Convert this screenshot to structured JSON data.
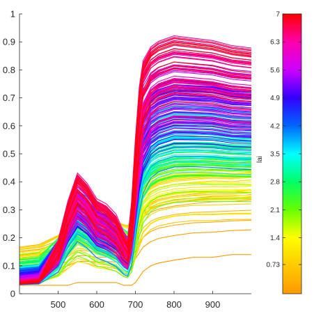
{
  "chart_data": [
    {
      "type": "line",
      "title": "",
      "xlabel": "",
      "ylabel": "",
      "xlim": [
        400,
        1000
      ],
      "ylim": [
        0,
        1
      ],
      "xticks": [
        500,
        600,
        700,
        800,
        900
      ],
      "xtick_labels": [
        "500",
        "600",
        "700",
        "800",
        "900"
      ],
      "yticks": [
        0,
        0.1,
        0.2,
        0.3,
        0.4,
        0.5,
        0.6,
        0.7,
        0.8,
        0.9,
        1
      ],
      "ytick_labels": [
        "0",
        "0.1",
        "0.2",
        "0.3",
        "0.4",
        "0.5",
        "0.6",
        "0.7",
        "0.8",
        "0.9",
        "1"
      ],
      "grid": false,
      "box": "left-bottom-axes-only",
      "series_color_by": "lai",
      "series_count_note": "hundreds of overlapping spectral reflectance curves, each colored by its lai value",
      "series_envelope": {
        "x": [
          400,
          450,
          500,
          525,
          550,
          575,
          600,
          625,
          650,
          670,
          680,
          690,
          700,
          710,
          720,
          740,
          760,
          800,
          850,
          900,
          950,
          1000
        ],
        "low_lai_min": [
          0.03,
          0.03,
          0.03,
          0.03,
          0.04,
          0.04,
          0.04,
          0.04,
          0.04,
          0.03,
          0.03,
          0.03,
          0.04,
          0.06,
          0.08,
          0.1,
          0.11,
          0.12,
          0.13,
          0.13,
          0.14,
          0.14
        ],
        "low_lai_max": [
          0.21,
          0.22,
          0.24,
          0.25,
          0.27,
          0.28,
          0.28,
          0.29,
          0.29,
          0.29,
          0.29,
          0.29,
          0.3,
          0.3,
          0.31,
          0.32,
          0.33,
          0.34,
          0.35,
          0.36,
          0.36,
          0.37
        ],
        "high_lai_min": [
          0.03,
          0.03,
          0.05,
          0.12,
          0.16,
          0.13,
          0.08,
          0.06,
          0.04,
          0.02,
          0.02,
          0.03,
          0.12,
          0.22,
          0.3,
          0.38,
          0.41,
          0.43,
          0.43,
          0.43,
          0.42,
          0.42
        ],
        "high_lai_max": [
          0.04,
          0.05,
          0.2,
          0.35,
          0.46,
          0.42,
          0.36,
          0.34,
          0.3,
          0.23,
          0.2,
          0.35,
          0.6,
          0.8,
          0.9,
          0.95,
          0.97,
          0.99,
          0.98,
          0.97,
          0.95,
          0.94
        ]
      }
    },
    {
      "type": "heatmap",
      "role": "colorbar",
      "label": "lai",
      "range": [
        0,
        7
      ],
      "ticks": [
        0.73,
        1.4,
        2.1,
        2.8,
        3.5,
        4.2,
        4.9,
        5.6,
        6.3,
        7
      ],
      "tick_labels": [
        "0.73",
        "1.4",
        "2.1",
        "2.8",
        "3.5",
        "4.2",
        "4.9",
        "5.6",
        "6.3",
        "7"
      ],
      "colormap": "hsv",
      "colormap_stops": [
        {
          "value": 0,
          "color": "#FF9900"
        },
        {
          "value": 0.73,
          "color": "#FFCC00"
        },
        {
          "value": 1.4,
          "color": "#FFFF00"
        },
        {
          "value": 2.1,
          "color": "#66FF00"
        },
        {
          "value": 2.8,
          "color": "#00FF66"
        },
        {
          "value": 3.5,
          "color": "#00FFFF"
        },
        {
          "value": 4.2,
          "color": "#0066FF"
        },
        {
          "value": 4.9,
          "color": "#3300FF"
        },
        {
          "value": 5.6,
          "color": "#CC00FF"
        },
        {
          "value": 6.3,
          "color": "#FF00AA"
        },
        {
          "value": 7,
          "color": "#FF0000"
        }
      ]
    }
  ],
  "colors": {
    "axis": "#262626",
    "background": "#ffffff"
  }
}
